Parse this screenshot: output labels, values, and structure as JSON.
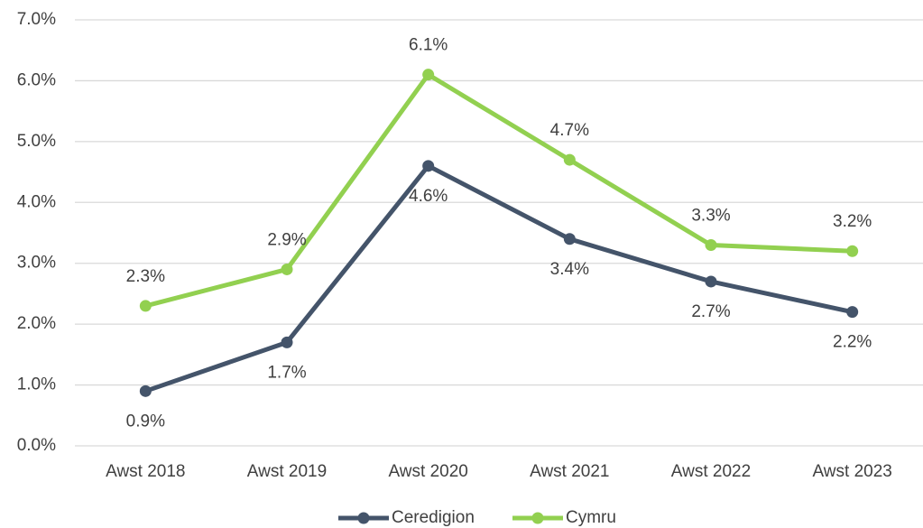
{
  "chart_data": {
    "type": "line",
    "categories": [
      "Awst 2018",
      "Awst 2019",
      "Awst 2020",
      "Awst 2021",
      "Awst 2022",
      "Awst 2023"
    ],
    "series": [
      {
        "name": "Ceredigion",
        "color": "#44546a",
        "values": [
          0.9,
          1.7,
          4.6,
          3.4,
          2.7,
          2.2
        ],
        "value_labels": [
          "0.9%",
          "1.7%",
          "4.6%",
          "3.4%",
          "2.7%",
          "2.2%"
        ]
      },
      {
        "name": "Cymru",
        "color": "#92d050",
        "values": [
          2.3,
          2.9,
          6.1,
          4.7,
          3.3,
          3.2
        ],
        "value_labels": [
          "2.3%",
          "2.9%",
          "6.1%",
          "4.7%",
          "3.3%",
          "3.2%"
        ]
      }
    ],
    "ylim": [
      0,
      7
    ],
    "yticks": [
      {
        "value": 0,
        "label": "0.0%"
      },
      {
        "value": 1,
        "label": "1.0%"
      },
      {
        "value": 2,
        "label": "2.0%"
      },
      {
        "value": 3,
        "label": "3.0%"
      },
      {
        "value": 4,
        "label": "4.0%"
      },
      {
        "value": 5,
        "label": "5.0%"
      },
      {
        "value": 6,
        "label": "6.0%"
      },
      {
        "value": 7,
        "label": "7.0%"
      }
    ],
    "grid": true,
    "legend": "bottom"
  }
}
